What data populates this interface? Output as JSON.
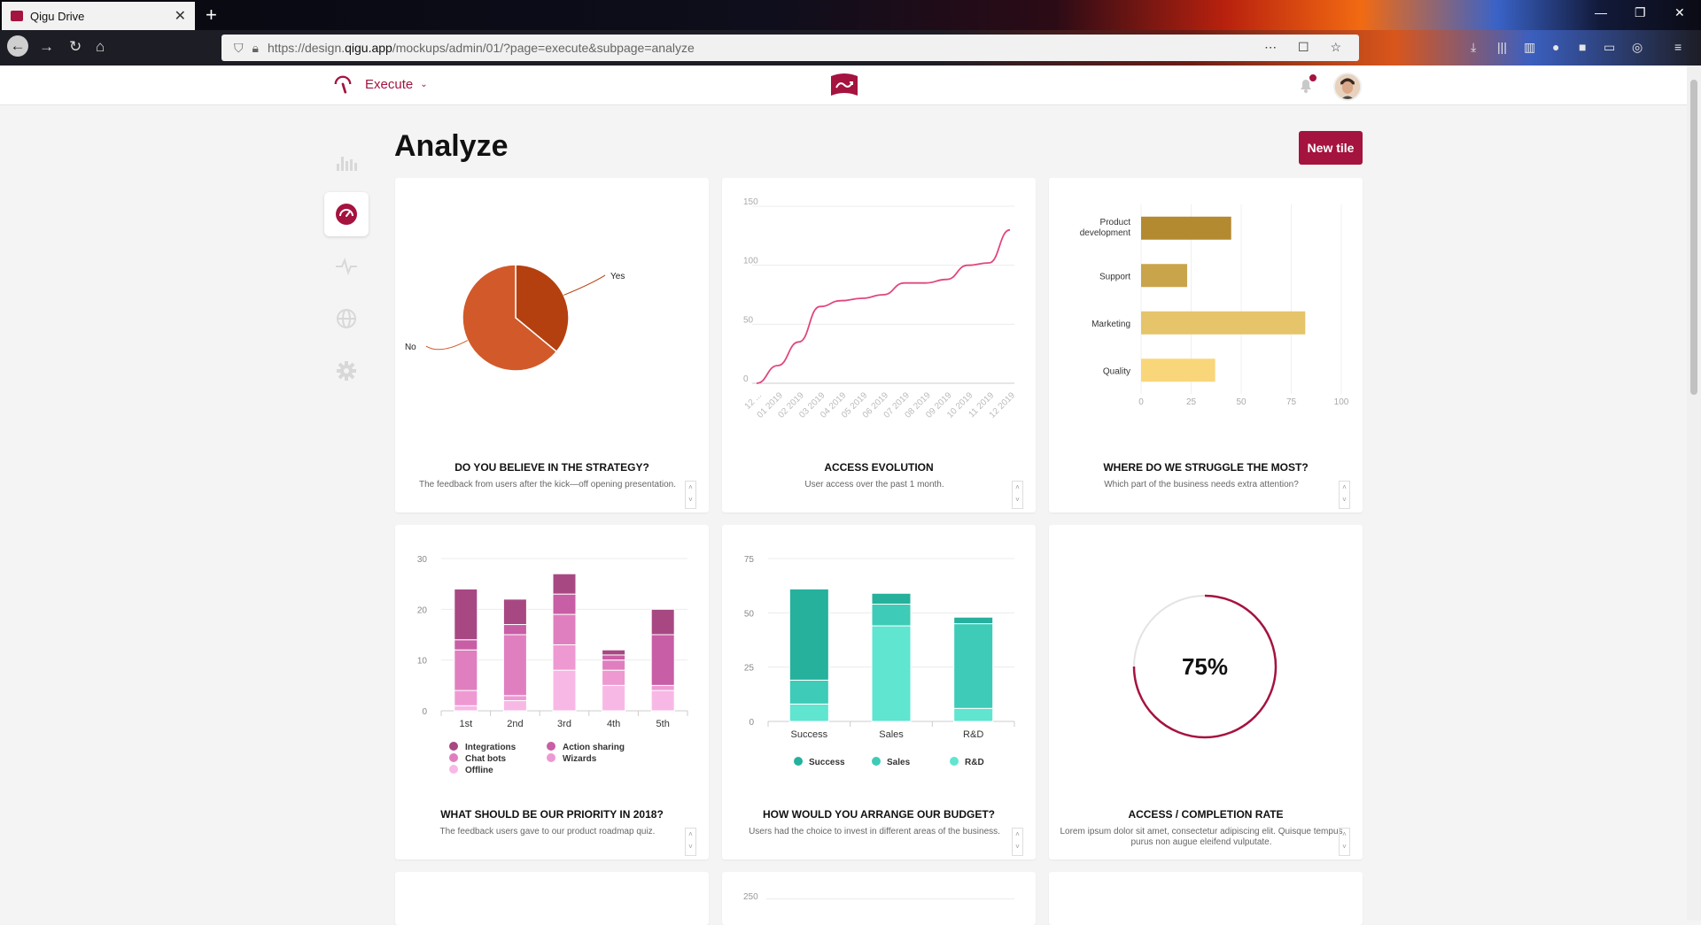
{
  "browser": {
    "tab_title": "Qigu Drive",
    "tab_close": "✕",
    "new_tab": "+",
    "url_prefix": "https://design.",
    "url_host": "qigu.app",
    "url_path": "/mockups/admin/01/?page=execute&subpage=analyze",
    "minimize": "—",
    "restore": "❐",
    "close": "✕"
  },
  "header": {
    "section": "Execute",
    "chevron": "⌄"
  },
  "page": {
    "title": "Analyze",
    "new_tile": "New tile"
  },
  "cards": {
    "c1": {
      "title": "DO YOU BELIEVE IN THE STRATEGY?",
      "desc": "The feedback from users after the kick—off opening presentation."
    },
    "c2": {
      "title": "ACCESS EVOLUTION",
      "desc": "User access over the past 1 month."
    },
    "c3": {
      "title": "WHERE DO WE STRUGGLE THE MOST?",
      "desc": "Which part of the business needs extra attention?"
    },
    "c4": {
      "title": "WHAT SHOULD BE OUR PRIORITY IN 2018?",
      "desc": "The feedback users gave to our product roadmap quiz."
    },
    "c5": {
      "title": "HOW WOULD YOU ARRANGE OUR BUDGET?",
      "desc": "Users had the choice to invest in different areas of the business."
    },
    "c6": {
      "title": "ACCESS / COMPLETION RATE",
      "desc": "Lorem ipsum dolor sit amet, consectetur adipiscing elit. Quisque tempus purus non augue eleifend vulputate."
    }
  },
  "colors": {
    "accent": "#a5133f"
  },
  "chart_data": [
    {
      "type": "pie",
      "labels": [
        "Yes",
        "No"
      ],
      "values": [
        36,
        64
      ],
      "colors": [
        "#b5400f",
        "#d2592a"
      ]
    },
    {
      "type": "line",
      "x": [
        "12 ...",
        "01 2019",
        "02 2019",
        "03 2019",
        "04 2019",
        "05 2019",
        "06 2019",
        "07 2019",
        "08 2019",
        "09 2019",
        "10 2019",
        "11 2019",
        "12 2019"
      ],
      "values": [
        0,
        15,
        35,
        65,
        70,
        72,
        75,
        85,
        85,
        88,
        100,
        102,
        130
      ],
      "yticks": [
        0,
        50,
        100,
        150
      ],
      "ylim": [
        0,
        150
      ],
      "color": "#e0477f"
    },
    {
      "type": "bar",
      "orientation": "horizontal",
      "categories": [
        "Product development",
        "Support",
        "Marketing",
        "Quality"
      ],
      "values": [
        45,
        23,
        82,
        37
      ],
      "xticks": [
        0,
        25,
        50,
        75,
        100
      ],
      "xlim": [
        0,
        100
      ],
      "colors": [
        "#b38a30",
        "#c9a44a",
        "#e5c46a",
        "#fad67a"
      ]
    },
    {
      "type": "bar",
      "stacked": true,
      "categories": [
        "1st",
        "2nd",
        "3rd",
        "4th",
        "5th"
      ],
      "yticks": [
        0,
        10,
        20,
        30
      ],
      "ylim": [
        0,
        30
      ],
      "series": [
        {
          "name": "Offline",
          "values": [
            1,
            2,
            8,
            5,
            4
          ],
          "color": "#f8b8e6"
        },
        {
          "name": "Wizards",
          "values": [
            3,
            1,
            5,
            3,
            1
          ],
          "color": "#ee99d2"
        },
        {
          "name": "Chat bots",
          "values": [
            8,
            12,
            6,
            2,
            0
          ],
          "color": "#e07fbf"
        },
        {
          "name": "Action sharing",
          "values": [
            2,
            2,
            4,
            1,
            10
          ],
          "color": "#c85ea5"
        },
        {
          "name": "Integrations",
          "values": [
            10,
            5,
            4,
            1,
            5
          ],
          "color": "#a84883"
        }
      ],
      "legend": [
        "Integrations",
        "Action sharing",
        "Chat bots",
        "Wizards",
        "Offline"
      ]
    },
    {
      "type": "bar",
      "stacked": true,
      "categories": [
        "Success",
        "Sales",
        "R&D"
      ],
      "yticks": [
        0,
        25,
        50,
        75
      ],
      "ylim": [
        0,
        75
      ],
      "series": [
        {
          "name": "Success",
          "values": [
            8,
            44,
            6
          ],
          "color": "#5fe5d0"
        },
        {
          "name": "Sales",
          "values": [
            11,
            10,
            39
          ],
          "color": "#3ecbb7"
        },
        {
          "name": "R&D",
          "values": [
            42,
            5,
            3
          ],
          "color": "#25b19c"
        }
      ],
      "legend": [
        "Success",
        "Sales",
        "R&D"
      ],
      "legend_colors": [
        "#25b19c",
        "#3ecbb7",
        "#5fe5d0"
      ]
    },
    {
      "type": "gauge",
      "value": 75,
      "label": "75%",
      "color": "#a5133f"
    }
  ],
  "partial_row": {
    "tick_label": "250"
  }
}
